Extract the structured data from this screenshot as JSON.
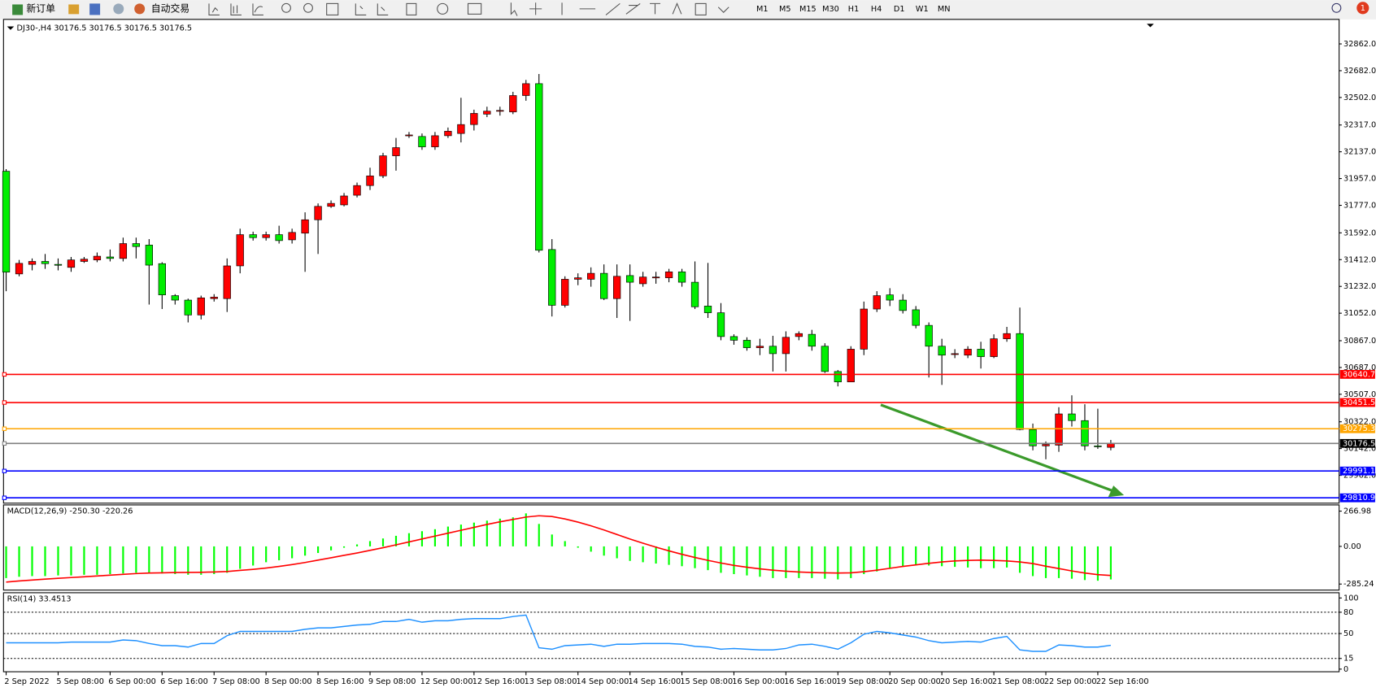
{
  "toolbar": {
    "buttons": [
      "新订单",
      "自动交易"
    ],
    "timeframes": [
      "M1",
      "M5",
      "M15",
      "M30",
      "H1",
      "H4",
      "D1",
      "W1",
      "MN"
    ],
    "badge": "1"
  },
  "chart_data": [
    {
      "type": "candlestick",
      "title": "DJ30-,H4 30176.5 30176.5 30176.5 30176.5",
      "up_color": "#ff0000",
      "down_color": "#00ee00",
      "categories": [
        "2 Sep 2022",
        null,
        null,
        null,
        "5 Sep 08:00",
        null,
        null,
        null,
        "6 Sep 00:00",
        null,
        null,
        null,
        "6 Sep 16:00",
        null,
        null,
        null,
        "7 Sep 08:00",
        null,
        null,
        null,
        "8 Sep 00:00",
        null,
        null,
        null,
        "8 Sep 16:00",
        null,
        null,
        null,
        "9 Sep 08:00",
        null,
        null,
        null,
        "12 Sep 00:00",
        null,
        null,
        null,
        "12 Sep 16:00",
        null,
        null,
        null,
        "13 Sep 08:00",
        null,
        null,
        null,
        "14 Sep 00:00",
        null,
        null,
        null,
        "14 Sep 16:00",
        null,
        null,
        null,
        "15 Sep 08:00",
        null,
        null,
        null,
        "16 Sep 00:00",
        null,
        null,
        null,
        "16 Sep 16:00",
        null,
        null,
        null,
        "19 Sep 08:00",
        null,
        null,
        null,
        "20 Sep 00:00",
        null,
        null,
        null,
        "20 Sep 16:00",
        null,
        null,
        null,
        "21 Sep 08:00",
        null,
        null,
        null,
        "22 Sep 00:00",
        null,
        null,
        null,
        "22 Sep 16:00",
        null
      ],
      "open": [
        32006,
        31316,
        31380,
        31400,
        31380,
        31360,
        31400,
        31410,
        31430,
        31420,
        31520,
        31510,
        31385,
        31170,
        31140,
        31040,
        31150,
        31150,
        31370,
        31580,
        31560,
        31580,
        31545,
        31590,
        31680,
        31770,
        31780,
        31845,
        31910,
        31975,
        32110,
        32245,
        32240,
        32170,
        32245,
        32260,
        32320,
        32390,
        32410,
        32405,
        32515,
        32595,
        31480,
        31105,
        31280,
        31280,
        31320,
        31150,
        31305,
        31250,
        31290,
        31290,
        31330,
        31260,
        31100,
        31055,
        30895,
        30870,
        30820,
        30830,
        30780,
        30895,
        30910,
        30830,
        30660,
        30590,
        30810,
        31080,
        31175,
        31140,
        31075,
        30970,
        30830,
        30780,
        30770,
        30810,
        30760,
        30880,
        30915,
        30270,
        30160,
        30165,
        30375,
        30330,
        30160,
        30150
      ],
      "high": [
        32020,
        31410,
        31420,
        31450,
        31420,
        31430,
        31430,
        31460,
        31480,
        31560,
        31560,
        31550,
        31395,
        31180,
        31150,
        31170,
        31180,
        31420,
        31620,
        31600,
        31600,
        31640,
        31620,
        31730,
        31790,
        31810,
        31860,
        31930,
        32030,
        32130,
        32230,
        32270,
        32260,
        32270,
        32300,
        32500,
        32420,
        32440,
        32440,
        32540,
        32620,
        32660,
        31550,
        31300,
        31320,
        31360,
        31380,
        31380,
        31380,
        31330,
        31330,
        31350,
        31350,
        31400,
        31390,
        31120,
        30910,
        30890,
        30880,
        30900,
        30930,
        30930,
        30940,
        30850,
        30670,
        30830,
        31130,
        31200,
        31220,
        31180,
        31100,
        30990,
        30880,
        30810,
        30830,
        30860,
        30910,
        30960,
        31090,
        30310,
        30190,
        30420,
        30500,
        30440,
        30410,
        30200
      ],
      "low": [
        31200,
        31300,
        31340,
        31350,
        31340,
        31330,
        31390,
        31395,
        31400,
        31400,
        31420,
        31110,
        31080,
        31110,
        30990,
        31010,
        31130,
        31060,
        31320,
        31540,
        31540,
        31520,
        31520,
        31330,
        31450,
        31760,
        31770,
        31830,
        31880,
        31960,
        32010,
        32230,
        32150,
        32150,
        32230,
        32200,
        32280,
        32370,
        32380,
        32390,
        32480,
        31460,
        31030,
        31090,
        31240,
        31230,
        31140,
        31020,
        31000,
        31230,
        31250,
        31260,
        31230,
        31080,
        31020,
        30870,
        30840,
        30800,
        30770,
        30660,
        30660,
        30870,
        30800,
        30650,
        30560,
        30590,
        30770,
        31060,
        31100,
        31050,
        30950,
        30620,
        30570,
        30750,
        30750,
        30680,
        30750,
        30860,
        30265,
        30130,
        30070,
        30120,
        30290,
        30130,
        30140,
        30130
      ],
      "close": [
        31328,
        31387,
        31400,
        31385,
        31375,
        31410,
        31415,
        31435,
        31420,
        31520,
        31500,
        31375,
        31175,
        31140,
        31040,
        31155,
        31160,
        31370,
        31580,
        31560,
        31580,
        31540,
        31595,
        31680,
        31770,
        31790,
        31840,
        31910,
        31975,
        32110,
        32165,
        32250,
        32170,
        32245,
        32275,
        32320,
        32395,
        32410,
        32415,
        32515,
        32595,
        31475,
        31105,
        31280,
        31290,
        31320,
        31150,
        31300,
        31260,
        31295,
        31295,
        31330,
        31260,
        31095,
        31055,
        30895,
        30870,
        30820,
        30830,
        30780,
        30890,
        30915,
        30830,
        30660,
        30590,
        30810,
        31080,
        31170,
        31140,
        31070,
        30970,
        30830,
        30770,
        30780,
        30810,
        30760,
        30880,
        30915,
        30270,
        30160,
        30170,
        30375,
        30330,
        30160,
        30155,
        30176.5
      ],
      "ylim": [
        29775,
        33027
      ],
      "yticks": [
        {
          "value": 32862,
          "label": "32862.0"
        },
        {
          "value": 32682,
          "label": "32682.0"
        },
        {
          "value": 32502,
          "label": "32502.0"
        },
        {
          "value": 32317,
          "label": "32317.0"
        },
        {
          "value": 32137,
          "label": "32137.0"
        },
        {
          "value": 31957,
          "label": "31957.0"
        },
        {
          "value": 31777,
          "label": "31777.0"
        },
        {
          "value": 31592,
          "label": "31592.0"
        },
        {
          "value": 31412,
          "label": "31412.0"
        },
        {
          "value": 31232,
          "label": "31232.0"
        },
        {
          "value": 31052,
          "label": "31052.0"
        },
        {
          "value": 30867,
          "label": "30867.0"
        },
        {
          "value": 30687,
          "label": "30687.0"
        },
        {
          "value": 30507,
          "label": "30507.0"
        },
        {
          "value": 30322,
          "label": "30322.0"
        },
        {
          "value": 30142,
          "label": "30142.0"
        },
        {
          "value": 29962,
          "label": "29962.0"
        }
      ],
      "hlines": [
        {
          "value": 30640.7,
          "color": "#ff0000"
        },
        {
          "value": 30451.5,
          "color": "#ff0000"
        },
        {
          "value": 30275.3,
          "color": "#ffa500"
        },
        {
          "value": 30176.5,
          "color": "#808080"
        },
        {
          "value": 29991.1,
          "color": "#0000ff"
        },
        {
          "value": 29810.9,
          "color": "#0000ff"
        }
      ]
    },
    {
      "type": "macd",
      "title": "MACD(12,26,9) -250.30 -220.26",
      "color": "#00ff00",
      "signal_color": "#ff0000",
      "histogram": [
        -240,
        -230,
        -225,
        -225,
        -220,
        -220,
        -215,
        -215,
        -210,
        -205,
        -200,
        -200,
        -205,
        -210,
        -215,
        -215,
        -210,
        -200,
        -170,
        -145,
        -120,
        -105,
        -90,
        -70,
        -50,
        -30,
        -10,
        15,
        40,
        60,
        80,
        100,
        115,
        130,
        150,
        165,
        180,
        195,
        210,
        220,
        250,
        170,
        90,
        40,
        -10,
        -40,
        -70,
        -90,
        -110,
        -120,
        -130,
        -140,
        -150,
        -165,
        -180,
        -200,
        -210,
        -220,
        -230,
        -240,
        -240,
        -240,
        -240,
        -245,
        -250,
        -240,
        -210,
        -190,
        -170,
        -150,
        -145,
        -145,
        -150,
        -155,
        -160,
        -165,
        -165,
        -160,
        -200,
        -225,
        -240,
        -240,
        -245,
        -255,
        -260,
        -250.3
      ],
      "signal": [
        -270,
        -262,
        -255,
        -248,
        -242,
        -236,
        -230,
        -224,
        -218,
        -212,
        -206,
        -202,
        -200,
        -198,
        -197,
        -196,
        -194,
        -190,
        -182,
        -174,
        -164,
        -152,
        -138,
        -122,
        -104,
        -86,
        -68,
        -50,
        -30,
        -10,
        12,
        34,
        56,
        78,
        100,
        122,
        144,
        166,
        186,
        204,
        222,
        232,
        226,
        208,
        184,
        156,
        124,
        90,
        56,
        24,
        -6,
        -34,
        -60,
        -84,
        -106,
        -126,
        -144,
        -158,
        -170,
        -180,
        -188,
        -194,
        -198,
        -200,
        -202,
        -200,
        -192,
        -180,
        -166,
        -152,
        -140,
        -128,
        -118,
        -110,
        -106,
        -104,
        -106,
        -110,
        -118,
        -130,
        -150,
        -168,
        -186,
        -202,
        -214,
        -220.26
      ],
      "ylim": [
        -331,
        314
      ],
      "yticks": [
        266.98,
        {
          "value": 0,
          "label": "0.00"
        },
        -285.24
      ]
    },
    {
      "type": "rsi",
      "title": "RSI(14) 33.4513",
      "color": "#1e90ff",
      "values": [
        37,
        37,
        37,
        37,
        37,
        38,
        38,
        38,
        38,
        41,
        40,
        36,
        33,
        33,
        31,
        36,
        36,
        47,
        53,
        53,
        53,
        53,
        53,
        56,
        58,
        58,
        60,
        62,
        63,
        67,
        67,
        70,
        66,
        68,
        68,
        70,
        71,
        71,
        71,
        74,
        76,
        30,
        28,
        33,
        34,
        35,
        32,
        35,
        35,
        36,
        36,
        36,
        35,
        32,
        31,
        28,
        29,
        28,
        27,
        27,
        29,
        34,
        35,
        32,
        28,
        37,
        49,
        53,
        51,
        48,
        45,
        40,
        37,
        38,
        39,
        38,
        43,
        46,
        27,
        25,
        25,
        34,
        33,
        31,
        31,
        33.4513
      ],
      "ylim": [
        0,
        100
      ],
      "yticks": [
        100,
        80,
        50,
        15,
        0
      ],
      "levels": [
        80,
        50,
        15
      ]
    }
  ]
}
